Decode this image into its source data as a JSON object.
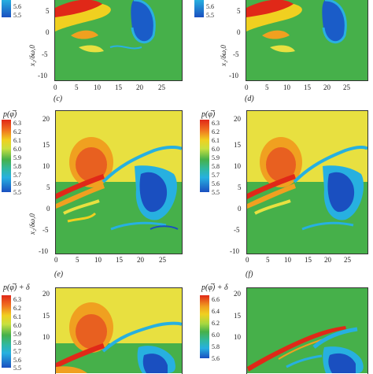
{
  "colors": {
    "background": "#46b04a",
    "frame": "#333333"
  },
  "figure": {
    "axis_label_y": "x₂/δω,0",
    "x_ticks": [
      "0",
      "5",
      "10",
      "15",
      "20",
      "25"
    ],
    "rows": [
      {
        "left_label": "(c)",
        "right_label": "(d)",
        "y_ticks_visible": [
          "5",
          "0",
          "-5",
          "-10"
        ],
        "colorbar_ticks_visible": [
          "5.6",
          "5.5"
        ],
        "colorbar_ticks_visible_right": [
          "5.6",
          "5.5"
        ]
      },
      {
        "left_label": "(e)",
        "right_label": "(f)",
        "left_colorbar_title": "p(φ̅)",
        "right_colorbar_title": "p(φ̅)",
        "colorbar_ticks": [
          "6.3",
          "6.2",
          "6.1",
          "6.0",
          "5.9",
          "5.8",
          "5.7",
          "5.6",
          "5.5"
        ],
        "y_ticks": [
          "20",
          "15",
          "10",
          "5",
          "0",
          "-5",
          "-10"
        ]
      },
      {
        "left_colorbar_title": "p(φ̅) + δ",
        "right_colorbar_title": "p(φ̅) + δ",
        "left_colorbar_ticks": [
          "6.3",
          "6.2",
          "6.1",
          "6.0",
          "5.9",
          "5.8",
          "5.7",
          "5.6",
          "5.5"
        ],
        "right_colorbar_ticks": [
          "6.6",
          "6.4",
          "6.2",
          "6.0",
          "5.8",
          "5.6"
        ],
        "y_ticks": [
          "20",
          "15",
          "10"
        ]
      }
    ]
  }
}
